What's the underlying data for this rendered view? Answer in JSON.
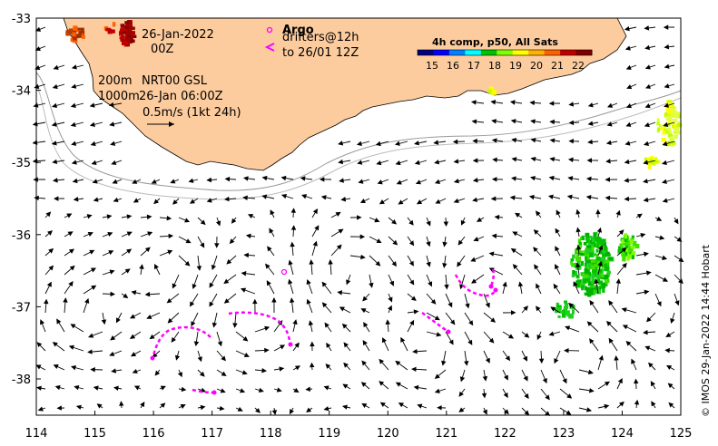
{
  "map": {
    "lon_ticks": [
      "114",
      "115",
      "116",
      "117",
      "118",
      "119",
      "120",
      "121",
      "122",
      "123",
      "124",
      "125"
    ],
    "lat_ticks": [
      "-33",
      "-34",
      "-35",
      "-36",
      "-37",
      "-38"
    ],
    "lon_range": [
      114,
      125
    ],
    "lat_range": [
      -33,
      -38.5
    ],
    "land_color": "#fdcc9e",
    "drifter_color": "#ff00ff"
  },
  "annotations": {
    "date_line1": "26-Jan-2022",
    "date_line2": "00Z",
    "depth1": "200m",
    "depth2": "1000m",
    "product": "NRT00 GSL",
    "product_time": "26-Jan 06:00Z",
    "scale": "0.5m/s (1kt 24h)",
    "argo_label": "Argo",
    "drifters_label": "drifters@12h",
    "drifters_to": "to 26/01 12Z"
  },
  "colorbar": {
    "title": "4h comp, p50, All Sats",
    "ticks": [
      "15",
      "16",
      "17",
      "18",
      "19",
      "20",
      "21",
      "22"
    ],
    "colors": [
      "#00007f",
      "#0000ff",
      "#0080ff",
      "#00ffff",
      "#00c000",
      "#80ff00",
      "#ffff00",
      "#ffb000",
      "#ff6000",
      "#c00000",
      "#800000"
    ]
  },
  "credit": "© IMOS 29-Jan-2022 14:44 Hobart"
}
